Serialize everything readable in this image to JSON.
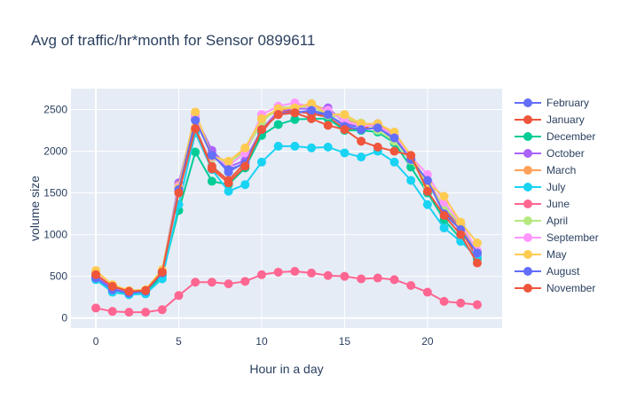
{
  "chart_data": {
    "type": "line",
    "title": "Avg of traffic/hr*month for Sensor 0899611",
    "xlabel": "Hour in a day",
    "ylabel": "volume size",
    "xlim": [
      -1.5,
      24.5
    ],
    "ylim": [
      -120,
      2750
    ],
    "xticks": [
      0,
      5,
      10,
      15,
      20
    ],
    "yticks": [
      0,
      500,
      1000,
      1500,
      2000,
      2500
    ],
    "grid": true,
    "legend_position": "right",
    "plot_background": "#e5ecf6",
    "x": [
      0,
      1,
      2,
      3,
      4,
      5,
      6,
      7,
      8,
      9,
      10,
      11,
      12,
      13,
      14,
      15,
      16,
      17,
      18,
      19,
      20,
      21,
      22,
      23
    ],
    "series": [
      {
        "name": "February",
        "color": "#636efa",
        "values": [
          480,
          340,
          310,
          320,
          540,
          1580,
          2380,
          1970,
          1750,
          1870,
          2240,
          2460,
          2470,
          2460,
          2430,
          2320,
          2290,
          2290,
          2140,
          1880,
          1630,
          1300,
          1100,
          770
        ]
      },
      {
        "name": "January",
        "color": "#ef553b",
        "values": [
          510,
          390,
          310,
          320,
          540,
          1530,
          2280,
          1820,
          1650,
          1860,
          2220,
          2480,
          2480,
          2450,
          2410,
          2270,
          2260,
          2330,
          2180,
          1910,
          1640,
          1280,
          1060,
          720
        ]
      },
      {
        "name": "December",
        "color": "#00cc96",
        "values": [
          470,
          340,
          290,
          300,
          510,
          1290,
          1990,
          1640,
          1600,
          1800,
          2190,
          2320,
          2380,
          2390,
          2390,
          2250,
          2250,
          2230,
          2100,
          1810,
          1500,
          1180,
          950,
          710
        ]
      },
      {
        "name": "October",
        "color": "#ab63fa",
        "values": [
          500,
          370,
          300,
          320,
          560,
          1620,
          2420,
          2010,
          1810,
          1890,
          2260,
          2480,
          2510,
          2510,
          2520,
          2340,
          2310,
          2300,
          2170,
          1900,
          1650,
          1320,
          1120,
          770
        ]
      },
      {
        "name": "March",
        "color": "#ffa15a",
        "values": [
          530,
          380,
          320,
          330,
          560,
          1590,
          2430,
          1920,
          1860,
          2020,
          2390,
          2490,
          2530,
          2570,
          2480,
          2380,
          2330,
          2310,
          2200,
          1920,
          1620,
          1340,
          1100,
          790
        ]
      },
      {
        "name": "July",
        "color": "#19d3f3",
        "values": [
          460,
          310,
          280,
          290,
          470,
          1360,
          2220,
          1780,
          1520,
          1600,
          1870,
          2060,
          2060,
          2040,
          2050,
          1980,
          1930,
          2000,
          1870,
          1650,
          1360,
          1080,
          920,
          730
        ]
      },
      {
        "name": "June",
        "color": "#ff6692",
        "values": [
          120,
          80,
          70,
          70,
          100,
          270,
          430,
          430,
          410,
          440,
          520,
          550,
          560,
          540,
          510,
          500,
          470,
          480,
          460,
          390,
          310,
          200,
          180,
          160
        ]
      },
      {
        "name": "April",
        "color": "#b6e880",
        "values": [
          540,
          380,
          320,
          330,
          560,
          1580,
          2450,
          1920,
          1870,
          1990,
          2350,
          2520,
          2530,
          2540,
          2430,
          2400,
          2340,
          2250,
          2120,
          1890,
          1590,
          1340,
          1130,
          800
        ]
      },
      {
        "name": "September",
        "color": "#ff97ff",
        "values": [
          530,
          380,
          320,
          330,
          570,
          1580,
          2430,
          1930,
          1830,
          1980,
          2440,
          2540,
          2580,
          2530,
          2490,
          2360,
          2300,
          2310,
          2180,
          1940,
          1720,
          1390,
          1140,
          810
        ]
      },
      {
        "name": "May",
        "color": "#fecb52",
        "values": [
          570,
          400,
          330,
          340,
          580,
          1560,
          2470,
          1940,
          1880,
          2040,
          2390,
          2510,
          2520,
          2570,
          2440,
          2440,
          2330,
          2330,
          2230,
          1950,
          1620,
          1460,
          1150,
          900
        ]
      },
      {
        "name": "August",
        "color": "#636efa",
        "values": [
          480,
          340,
          300,
          320,
          540,
          1540,
          2370,
          1950,
          1780,
          1850,
          2260,
          2440,
          2460,
          2490,
          2440,
          2300,
          2260,
          2280,
          2160,
          1900,
          1650,
          1250,
          1060,
          780
        ]
      },
      {
        "name": "November",
        "color": "#ef553b",
        "values": [
          520,
          380,
          320,
          330,
          550,
          1500,
          2270,
          1790,
          1620,
          1820,
          2260,
          2440,
          2460,
          2390,
          2310,
          2260,
          2120,
          2050,
          2000,
          1950,
          1520,
          1230,
          1000,
          660
        ]
      }
    ]
  }
}
